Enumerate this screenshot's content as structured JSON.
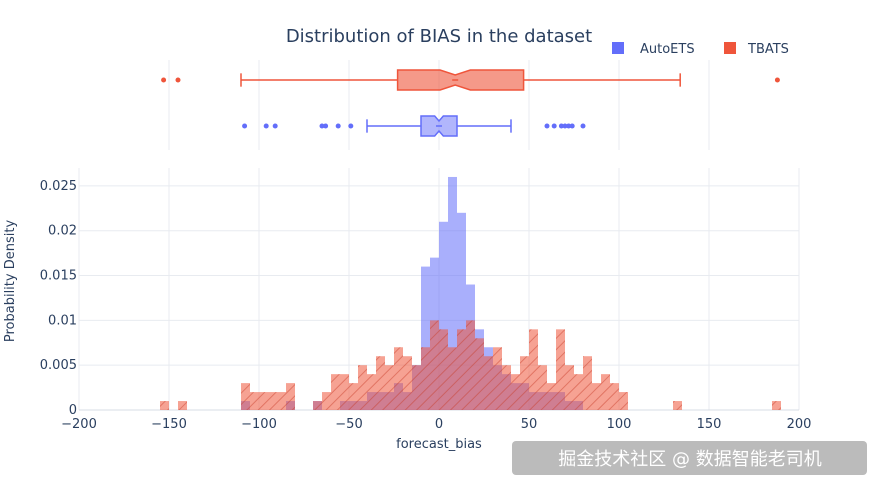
{
  "colors": {
    "autoets": "#636efa",
    "tbats": "#ef553b",
    "text": "#2a3f5f",
    "grid": "#e8ebf0"
  },
  "chart_data": {
    "type": "histogram",
    "title": "Distribution of BIAS in the dataset",
    "xlabel": "forecast_bias",
    "ylabel": "Probability Density",
    "xlim": [
      -200,
      200
    ],
    "ylim": [
      0,
      0.027
    ],
    "x_ticks": [
      -200,
      -150,
      -100,
      -50,
      0,
      50,
      100,
      150,
      200
    ],
    "x_tick_labels": [
      "−200",
      "−150",
      "−100",
      "−50",
      "0",
      "50",
      "100",
      "150",
      "200"
    ],
    "y_ticks": [
      0,
      0.005,
      0.01,
      0.015,
      0.02,
      0.025
    ],
    "y_tick_labels": [
      "0",
      "0.005",
      "0.01",
      "0.015",
      "0.02",
      "0.025"
    ],
    "grid": true,
    "legend": {
      "placement": "top-right",
      "items": [
        "AutoETS",
        "TBATS"
      ]
    },
    "bin_width": 5,
    "series": [
      {
        "name": "AutoETS",
        "color": "#636efa",
        "bins": [
          [
            -110,
            0.001
          ],
          [
            -85,
            0.001
          ],
          [
            -70,
            0.001
          ],
          [
            -55,
            0.001
          ],
          [
            -50,
            0.001
          ],
          [
            -45,
            0.001
          ],
          [
            -40,
            0.002
          ],
          [
            -35,
            0.002
          ],
          [
            -30,
            0.002
          ],
          [
            -25,
            0.003
          ],
          [
            -20,
            0.002
          ],
          [
            -15,
            0.005
          ],
          [
            -10,
            0.016
          ],
          [
            -5,
            0.017
          ],
          [
            0,
            0.021
          ],
          [
            5,
            0.026
          ],
          [
            10,
            0.022
          ],
          [
            15,
            0.014
          ],
          [
            20,
            0.009
          ],
          [
            25,
            0.007
          ],
          [
            30,
            0.005
          ],
          [
            35,
            0.004
          ],
          [
            40,
            0.003
          ],
          [
            45,
            0.003
          ],
          [
            50,
            0.002
          ],
          [
            55,
            0.002
          ],
          [
            60,
            0.002
          ],
          [
            65,
            0.002
          ],
          [
            70,
            0.001
          ],
          [
            75,
            0.001
          ]
        ],
        "box": {
          "q1": -10,
          "median": 0,
          "q3": 10,
          "whisker_low": -40,
          "whisker_high": 40,
          "outliers": [
            -108,
            -96,
            -91,
            -65,
            -63,
            -56,
            -49,
            60,
            64,
            68,
            70,
            72,
            74,
            80
          ]
        }
      },
      {
        "name": "TBATS",
        "color": "#ef553b",
        "bins": [
          [
            -155,
            0.001
          ],
          [
            -145,
            0.001
          ],
          [
            -110,
            0.003
          ],
          [
            -105,
            0.002
          ],
          [
            -100,
            0.002
          ],
          [
            -95,
            0.002
          ],
          [
            -90,
            0.002
          ],
          [
            -85,
            0.003
          ],
          [
            -70,
            0.001
          ],
          [
            -65,
            0.002
          ],
          [
            -60,
            0.004
          ],
          [
            -55,
            0.004
          ],
          [
            -50,
            0.003
          ],
          [
            -45,
            0.005
          ],
          [
            -40,
            0.004
          ],
          [
            -35,
            0.006
          ],
          [
            -30,
            0.005
          ],
          [
            -25,
            0.007
          ],
          [
            -20,
            0.006
          ],
          [
            -15,
            0.005
          ],
          [
            -10,
            0.007
          ],
          [
            -5,
            0.01
          ],
          [
            0,
            0.009
          ],
          [
            5,
            0.007
          ],
          [
            10,
            0.009
          ],
          [
            15,
            0.01
          ],
          [
            20,
            0.008
          ],
          [
            25,
            0.006
          ],
          [
            30,
            0.007
          ],
          [
            35,
            0.005
          ],
          [
            40,
            0.004
          ],
          [
            45,
            0.006
          ],
          [
            50,
            0.009
          ],
          [
            55,
            0.005
          ],
          [
            60,
            0.003
          ],
          [
            65,
            0.009
          ],
          [
            70,
            0.005
          ],
          [
            75,
            0.004
          ],
          [
            80,
            0.006
          ],
          [
            85,
            0.003
          ],
          [
            90,
            0.004
          ],
          [
            95,
            0.003
          ],
          [
            100,
            0.002
          ],
          [
            130,
            0.001
          ],
          [
            185,
            0.001
          ]
        ],
        "box": {
          "q1": -23,
          "median": 9,
          "q3": 47,
          "whisker_low": -110,
          "whisker_high": 134,
          "outliers": [
            -153,
            -145,
            188
          ]
        }
      }
    ]
  },
  "watermark": "掘金技术社区 @ 数据智能老司机"
}
